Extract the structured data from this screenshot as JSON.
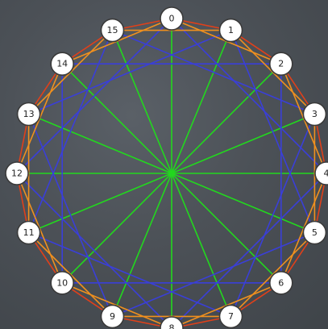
{
  "graph": {
    "nodes": [
      {
        "id": 0,
        "label": "0"
      },
      {
        "id": 1,
        "label": "1"
      },
      {
        "id": 2,
        "label": "2"
      },
      {
        "id": 3,
        "label": "3"
      },
      {
        "id": 4,
        "label": "4"
      },
      {
        "id": 5,
        "label": "5"
      },
      {
        "id": 6,
        "label": "6"
      },
      {
        "id": 7,
        "label": "7"
      },
      {
        "id": 8,
        "label": "8"
      },
      {
        "id": 9,
        "label": "9"
      },
      {
        "id": 10,
        "label": "10"
      },
      {
        "id": 11,
        "label": "11"
      },
      {
        "id": 12,
        "label": "12"
      },
      {
        "id": 13,
        "label": "13"
      },
      {
        "id": 14,
        "label": "14"
      },
      {
        "id": 15,
        "label": "15"
      }
    ],
    "edge_groups": [
      {
        "name": "step-1",
        "step": 1,
        "color": "#e0401a"
      },
      {
        "name": "step-2",
        "step": 2,
        "color": "#f0901e"
      },
      {
        "name": "step-4",
        "step": 4,
        "color": "#3a3fd8"
      },
      {
        "name": "step-8",
        "step": 8,
        "color": "#22d81e"
      }
    ]
  },
  "colors": {
    "background": "#4a4f55",
    "node_fill": "#ffffff",
    "node_stroke": "#3a3a3a",
    "label_text": "#222222"
  }
}
